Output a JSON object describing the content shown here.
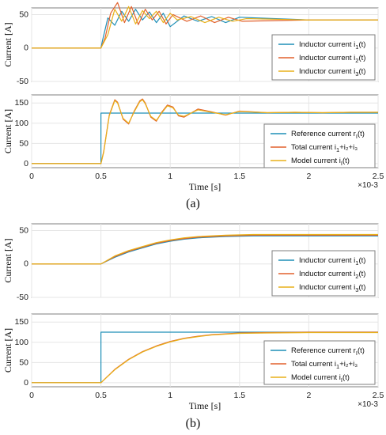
{
  "figure": {
    "captions": [
      "(a)",
      "(b)"
    ]
  },
  "chart_data": [
    {
      "type": "line",
      "panel": "(a)",
      "ylabel": "Current [A]",
      "xlabel": "",
      "xlim": [
        0,
        2.5
      ],
      "ylim": [
        -50,
        60
      ],
      "xticks": [
        "0",
        "0.5",
        "1",
        "1.5",
        "2",
        "2.5"
      ],
      "yticks": [
        "-50",
        "0",
        "50"
      ],
      "grid": true,
      "legend_position": "bottom-right",
      "series": [
        {
          "name": "Inductor current i1(t)",
          "label_main": "Inductor current i",
          "label_sub": "1",
          "label_tail": "(t)",
          "color": "#1f8fb7",
          "x": [
            0.0,
            0.5,
            0.51,
            0.55,
            0.6,
            0.65,
            0.7,
            0.75,
            0.8,
            0.85,
            0.9,
            0.95,
            1.0,
            1.1,
            1.2,
            1.3,
            1.4,
            1.5,
            2.0,
            2.5
          ],
          "y": [
            0,
            0,
            10,
            45,
            34,
            55,
            40,
            58,
            42,
            54,
            38,
            52,
            32,
            48,
            40,
            47,
            38,
            46,
            42,
            42
          ]
        },
        {
          "name": "Inductor current i2(t)",
          "label_main": "Inductor current i",
          "label_sub": "2",
          "label_tail": "(t)",
          "color": "#e2612d",
          "x": [
            0.0,
            0.5,
            0.53,
            0.57,
            0.62,
            0.67,
            0.72,
            0.77,
            0.82,
            0.87,
            0.92,
            0.97,
            1.02,
            1.12,
            1.22,
            1.32,
            1.42,
            1.52,
            2.0,
            2.5
          ],
          "y": [
            0,
            0,
            15,
            52,
            68,
            38,
            62,
            35,
            58,
            42,
            55,
            36,
            50,
            40,
            48,
            38,
            46,
            40,
            42,
            42
          ]
        },
        {
          "name": "Inductor current i3(t)",
          "label_main": "Inductor current i",
          "label_sub": "3",
          "label_tail": "(t)",
          "color": "#e8b11a",
          "x": [
            0.0,
            0.5,
            0.55,
            0.6,
            0.65,
            0.7,
            0.75,
            0.8,
            0.85,
            0.9,
            0.95,
            1.0,
            1.05,
            1.15,
            1.25,
            1.35,
            1.45,
            1.55,
            2.0,
            2.5
          ],
          "y": [
            0,
            0,
            20,
            58,
            40,
            62,
            36,
            56,
            44,
            55,
            38,
            52,
            42,
            47,
            38,
            46,
            40,
            44,
            42,
            42
          ]
        }
      ]
    },
    {
      "type": "line",
      "panel": "(a)",
      "ylabel": "Current [A]",
      "xlabel": "Time [s]",
      "x_multiplier": "×10-3",
      "xlim": [
        0,
        2.5
      ],
      "ylim": [
        -10,
        170
      ],
      "xticks": [
        "0",
        "0.5",
        "1",
        "1.5",
        "2",
        "2.5"
      ],
      "yticks": [
        "0",
        "50",
        "100",
        "150"
      ],
      "grid": true,
      "legend_position": "bottom-right",
      "series": [
        {
          "name": "Reference current rI(t)",
          "label_main": "Reference current r",
          "label_sub": "I",
          "label_tail": "(t)",
          "color": "#1f8fb7",
          "x": [
            0.0,
            0.5,
            0.5,
            2.5
          ],
          "y": [
            0,
            0,
            125,
            125
          ]
        },
        {
          "name": "Total current i1+i2+i3",
          "label_main": "Total current i",
          "label_sub": "1",
          "label_tail": "+i₂+i₃",
          "color": "#e2612d",
          "x": [
            0.0,
            0.5,
            0.52,
            0.56,
            0.6,
            0.62,
            0.66,
            0.7,
            0.74,
            0.78,
            0.8,
            0.82,
            0.86,
            0.9,
            0.94,
            0.98,
            1.02,
            1.06,
            1.1,
            1.2,
            1.3,
            1.4,
            1.5,
            1.7,
            1.9,
            2.1,
            2.3,
            2.5
          ],
          "y": [
            0,
            0,
            30,
            120,
            158,
            152,
            110,
            98,
            130,
            155,
            160,
            150,
            115,
            105,
            128,
            145,
            140,
            118,
            115,
            135,
            128,
            120,
            130,
            126,
            127,
            126,
            127,
            127
          ]
        },
        {
          "name": "Model current iI(t)",
          "label_main": "Model current i",
          "label_sub": "I",
          "label_tail": "(t)",
          "color": "#e8b11a",
          "x": [
            0.0,
            0.5,
            0.52,
            0.56,
            0.6,
            0.62,
            0.66,
            0.7,
            0.74,
            0.78,
            0.8,
            0.82,
            0.86,
            0.9,
            0.94,
            0.98,
            1.02,
            1.06,
            1.1,
            1.2,
            1.3,
            1.4,
            1.5,
            1.7,
            1.9,
            2.1,
            2.3,
            2.5
          ],
          "y": [
            0,
            0,
            28,
            118,
            156,
            150,
            112,
            100,
            128,
            153,
            158,
            148,
            117,
            107,
            126,
            143,
            138,
            120,
            117,
            133,
            127,
            121,
            129,
            126,
            127,
            126,
            127,
            127
          ]
        }
      ]
    },
    {
      "type": "line",
      "panel": "(b)",
      "ylabel": "Current [A]",
      "xlabel": "",
      "xlim": [
        0,
        2.5
      ],
      "ylim": [
        -50,
        60
      ],
      "xticks": [
        "0",
        "0.5",
        "1",
        "1.5",
        "2",
        "2.5"
      ],
      "yticks": [
        "-50",
        "0",
        "50"
      ],
      "grid": true,
      "legend_position": "bottom-right",
      "series": [
        {
          "name": "Inductor current i1(t)",
          "label_main": "Inductor current i",
          "label_sub": "1",
          "label_tail": "(t)",
          "color": "#1f8fb7",
          "x": [
            0.0,
            0.5,
            0.6,
            0.7,
            0.8,
            0.9,
            1.0,
            1.1,
            1.2,
            1.4,
            1.6,
            1.8,
            2.0,
            2.5
          ],
          "y": [
            0,
            0,
            10,
            18,
            24,
            30,
            34,
            37,
            39,
            41,
            42,
            42,
            42,
            42
          ]
        },
        {
          "name": "Inductor current i2(t)",
          "label_main": "Inductor current i",
          "label_sub": "2",
          "label_tail": "(t)",
          "color": "#e2612d",
          "x": [
            0.0,
            0.5,
            0.6,
            0.7,
            0.8,
            0.9,
            1.0,
            1.1,
            1.2,
            1.4,
            1.6,
            1.8,
            2.0,
            2.5
          ],
          "y": [
            0,
            0,
            11,
            19,
            25,
            31,
            35,
            38,
            40,
            42,
            43,
            43,
            43,
            43
          ]
        },
        {
          "name": "Inductor current i3(t)",
          "label_main": "Inductor current i",
          "label_sub": "3",
          "label_tail": "(t)",
          "color": "#e8b11a",
          "x": [
            0.0,
            0.5,
            0.6,
            0.7,
            0.8,
            0.9,
            1.0,
            1.1,
            1.2,
            1.4,
            1.6,
            1.8,
            2.0,
            2.5
          ],
          "y": [
            0,
            0,
            12,
            20,
            26,
            32,
            36,
            39,
            41,
            43,
            44,
            44,
            44,
            44
          ]
        }
      ]
    },
    {
      "type": "line",
      "panel": "(b)",
      "ylabel": "Current [A]",
      "xlabel": "Time [s]",
      "x_multiplier": "×10-3",
      "xlim": [
        0,
        2.5
      ],
      "ylim": [
        -10,
        170
      ],
      "xticks": [
        "0",
        "0.5",
        "1",
        "1.5",
        "2",
        "2.5"
      ],
      "yticks": [
        "0",
        "50",
        "100",
        "150"
      ],
      "grid": true,
      "legend_position": "bottom-right",
      "series": [
        {
          "name": "Reference current rI(t)",
          "label_main": "Reference current r",
          "label_sub": "I",
          "label_tail": "(t)",
          "color": "#1f8fb7",
          "x": [
            0.0,
            0.5,
            0.5,
            2.5
          ],
          "y": [
            0,
            0,
            125,
            125
          ]
        },
        {
          "name": "Total current i1+i2+i3",
          "label_main": "Total current i",
          "label_sub": "1",
          "label_tail": "+i₂+i₃",
          "color": "#e2612d",
          "x": [
            0.0,
            0.5,
            0.6,
            0.7,
            0.8,
            0.9,
            1.0,
            1.1,
            1.2,
            1.3,
            1.4,
            1.5,
            1.7,
            2.0,
            2.5
          ],
          "y": [
            0,
            0,
            33,
            58,
            77,
            91,
            102,
            110,
            115,
            119,
            121,
            123,
            124,
            125,
            125
          ]
        },
        {
          "name": "Model current iI(t)",
          "label_main": "Model current i",
          "label_sub": "I",
          "label_tail": "(t)",
          "color": "#e8b11a",
          "x": [
            0.0,
            0.5,
            0.6,
            0.7,
            0.8,
            0.9,
            1.0,
            1.1,
            1.2,
            1.3,
            1.4,
            1.5,
            1.7,
            2.0,
            2.5
          ],
          "y": [
            0,
            0,
            32,
            57,
            76,
            90,
            101,
            109,
            114,
            118,
            120,
            122,
            123,
            124,
            124
          ]
        }
      ]
    }
  ]
}
